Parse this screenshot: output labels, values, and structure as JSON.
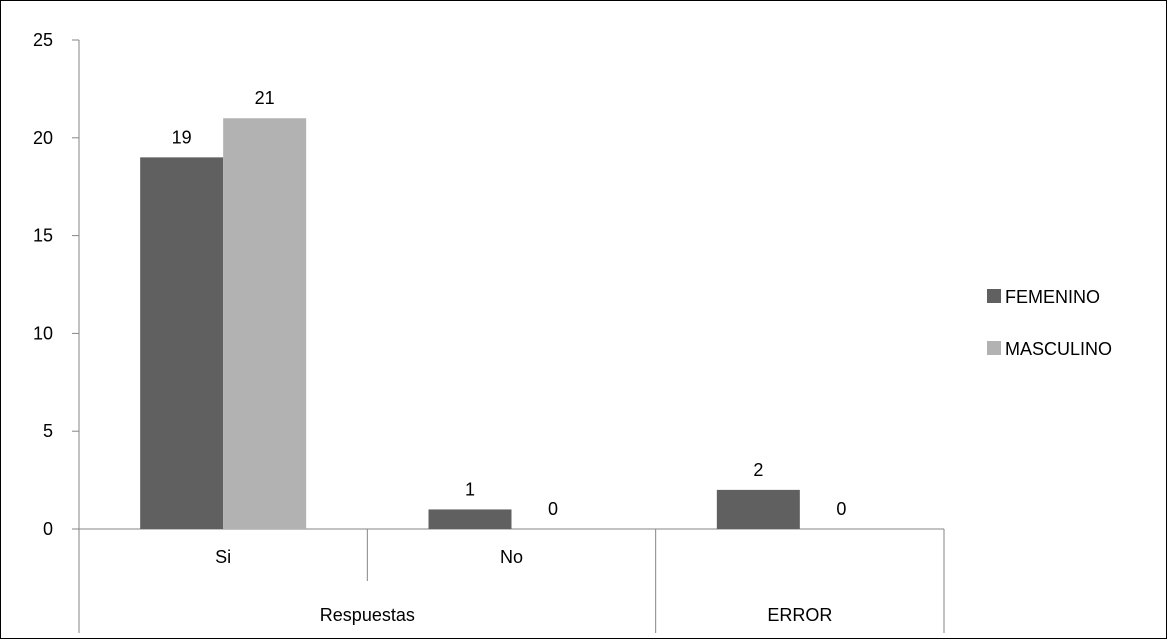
{
  "chart_data": {
    "type": "bar",
    "categories": [
      "Si",
      "No",
      "ERROR"
    ],
    "category_groups": [
      {
        "label": "Respuestas",
        "categories": [
          "Si",
          "No"
        ]
      },
      {
        "label": "ERROR",
        "categories": [
          "ERROR"
        ]
      }
    ],
    "series": [
      {
        "name": "FEMENINO",
        "values": [
          19,
          1,
          2
        ],
        "color": "#606060"
      },
      {
        "name": "MASCULINO",
        "values": [
          21,
          0,
          0
        ],
        "color": "#B2B2B2"
      }
    ],
    "data_labels": true,
    "ylim": [
      0,
      25
    ],
    "yticks": [
      0,
      5,
      10,
      15,
      20,
      25
    ],
    "grid": false,
    "legend_position": "right",
    "title": "",
    "xlabel": "",
    "ylabel": ""
  }
}
